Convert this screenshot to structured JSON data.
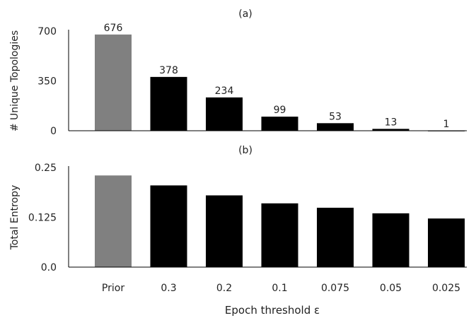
{
  "figure": {
    "xlabel": "Epoch threshold ε"
  },
  "colors": {
    "prior_bar": "#808080",
    "bar": "#000000",
    "axis": "#000000",
    "text": "#222222"
  },
  "chart_data": [
    {
      "type": "bar",
      "title": "(a)",
      "ylabel": "# Unique Topologies",
      "xlabel": "",
      "ylim": [
        0,
        700
      ],
      "yticks": [
        0,
        350,
        700
      ],
      "ytick_labels": [
        "0",
        "350",
        "700"
      ],
      "categories": [
        "Prior",
        "0.3",
        "0.2",
        "0.1",
        "0.075",
        "0.05",
        "0.025"
      ],
      "values": [
        676,
        378,
        234,
        99,
        53,
        13,
        1
      ],
      "data_labels": [
        "676",
        "378",
        "234",
        "99",
        "53",
        "13",
        "1"
      ],
      "show_category_labels": false,
      "grid": false
    },
    {
      "type": "bar",
      "title": "(b)",
      "ylabel": "Total Entropy",
      "xlabel": "Epoch threshold ε",
      "ylim": [
        0,
        0.25
      ],
      "yticks": [
        0,
        0.125,
        0.25
      ],
      "ytick_labels": [
        "0.0",
        "0.125",
        "0.25"
      ],
      "categories": [
        "Prior",
        "0.3",
        "0.2",
        "0.1",
        "0.075",
        "0.05",
        "0.025"
      ],
      "values": [
        0.23,
        0.205,
        0.18,
        0.16,
        0.149,
        0.135,
        0.122
      ],
      "data_labels": [],
      "show_category_labels": true,
      "grid": false
    }
  ]
}
